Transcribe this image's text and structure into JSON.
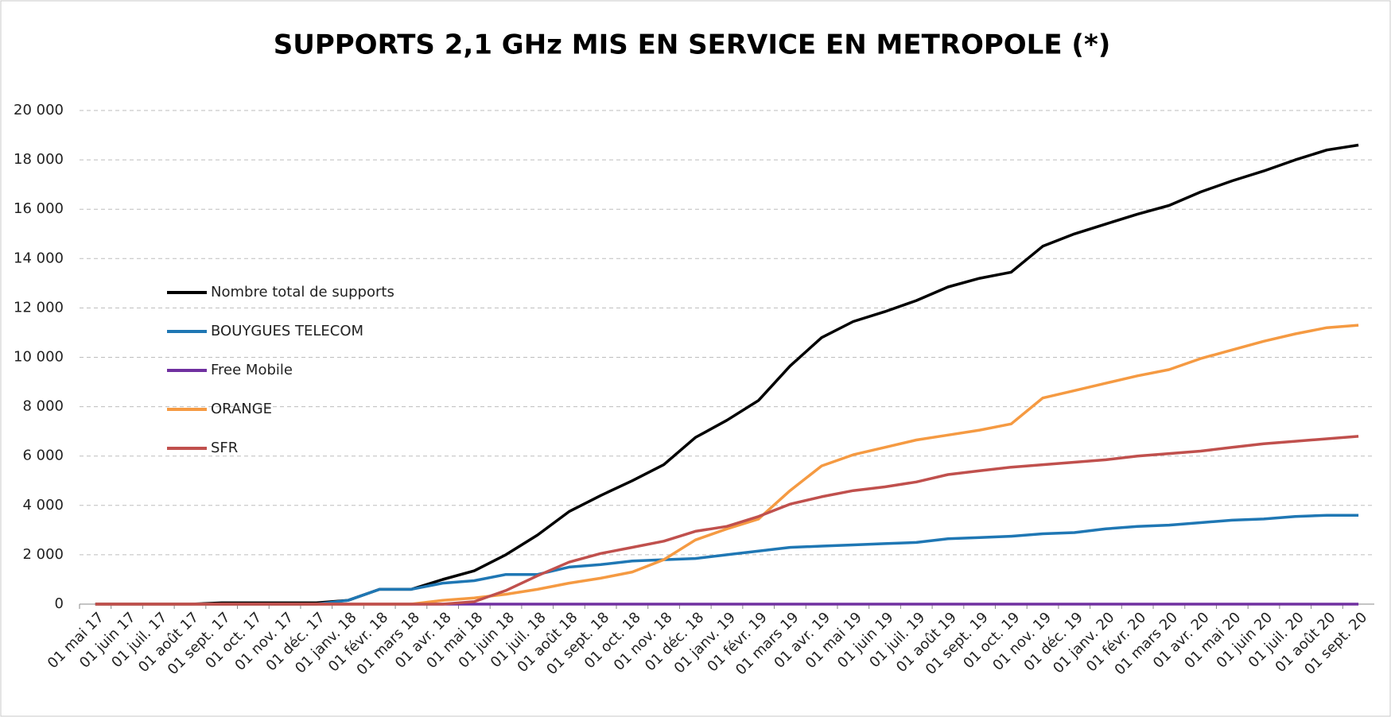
{
  "chart_data": {
    "type": "line",
    "title": "SUPPORTS 2,1 GHz MIS EN SERVICE EN METROPOLE (*)",
    "categories": [
      "01 mai 17",
      "01 juin 17",
      "01 juil. 17",
      "01 août 17",
      "01 sept. 17",
      "01 oct. 17",
      "01 nov. 17",
      "01 déc. 17",
      "01 janv. 18",
      "01 févr. 18",
      "01 mars 18",
      "01 avr. 18",
      "01 mai 18",
      "01 juin 18",
      "01 juil. 18",
      "01 août 18",
      "01 sept. 18",
      "01 oct. 18",
      "01 nov. 18",
      "01 déc. 18",
      "01 janv. 19",
      "01 févr. 19",
      "01 mars 19",
      "01 avr. 19",
      "01 mai 19",
      "01 juin 19",
      "01 juil. 19",
      "01 août 19",
      "01 sept. 19",
      "01 oct. 19",
      "01 nov. 19",
      "01 déc. 19",
      "01 janv. 20",
      "01 févr. 20",
      "01 mars 20",
      "01 avr. 20",
      "01 mai 20",
      "01 juin 20",
      "01 juil. 20",
      "01 août 20",
      "01 sept. 20"
    ],
    "series": [
      {
        "name": "Nombre total de supports",
        "color": "#000000",
        "values": [
          0,
          0,
          0,
          0,
          50,
          50,
          50,
          50,
          150,
          600,
          600,
          1000,
          1350,
          2000,
          2800,
          3750,
          4400,
          5000,
          5650,
          6750,
          7450,
          8250,
          9650,
          10800,
          11450,
          11850,
          12300,
          12850,
          13200,
          13450,
          14500,
          15000,
          15400,
          15800,
          16150,
          16700,
          17150,
          17550,
          18000,
          18400,
          18600
        ]
      },
      {
        "name": "BOUYGUES TELECOM",
        "color": "#1f77b4",
        "values": [
          0,
          0,
          0,
          0,
          0,
          0,
          0,
          0,
          150,
          600,
          600,
          850,
          950,
          1200,
          1200,
          1500,
          1600,
          1750,
          1800,
          1850,
          2000,
          2150,
          2300,
          2350,
          2400,
          2450,
          2500,
          2650,
          2700,
          2750,
          2850,
          2900,
          3050,
          3150,
          3200,
          3300,
          3400,
          3450,
          3550,
          3600,
          3600
        ]
      },
      {
        "name": "Free Mobile",
        "color": "#7030a0",
        "values": [
          0,
          0,
          0,
          0,
          0,
          0,
          0,
          0,
          0,
          0,
          0,
          0,
          0,
          0,
          0,
          0,
          0,
          0,
          0,
          0,
          0,
          0,
          0,
          0,
          0,
          0,
          0,
          0,
          0,
          0,
          0,
          0,
          0,
          0,
          0,
          0,
          0,
          0,
          0,
          0,
          0
        ]
      },
      {
        "name": "ORANGE",
        "color": "#f59a42",
        "values": [
          0,
          0,
          0,
          0,
          0,
          0,
          0,
          0,
          0,
          0,
          0,
          150,
          250,
          400,
          600,
          850,
          1050,
          1300,
          1800,
          2600,
          3050,
          3450,
          4600,
          5600,
          6050,
          6350,
          6650,
          6850,
          7050,
          7300,
          8350,
          8650,
          8950,
          9250,
          9500,
          9950,
          10300,
          10650,
          10950,
          11200,
          11300
        ]
      },
      {
        "name": "SFR",
        "color": "#c0504d",
        "values": [
          0,
          0,
          0,
          0,
          0,
          0,
          0,
          0,
          0,
          0,
          0,
          0,
          100,
          550,
          1150,
          1700,
          2050,
          2300,
          2550,
          2950,
          3150,
          3550,
          4050,
          4350,
          4600,
          4750,
          4950,
          5250,
          5400,
          5550,
          5650,
          5750,
          5850,
          6000,
          6100,
          6200,
          6350,
          6500,
          6600,
          6700,
          6800
        ]
      }
    ],
    "ylim": [
      0,
      20000
    ],
    "yticks": [
      0,
      {
        "value": 2000,
        "label": "2 000"
      },
      {
        "value": 4000,
        "label": "4 000"
      },
      {
        "value": 6000,
        "label": "6 000"
      },
      {
        "value": 8000,
        "label": "8 000"
      },
      {
        "value": 10000,
        "label": "10 000"
      },
      {
        "value": 12000,
        "label": "12 000"
      },
      {
        "value": 14000,
        "label": "14 000"
      },
      {
        "value": 16000,
        "label": "16 000"
      },
      {
        "value": 18000,
        "label": "18 000"
      },
      {
        "value": 20000,
        "label": "20 000"
      }
    ],
    "grid": true
  }
}
